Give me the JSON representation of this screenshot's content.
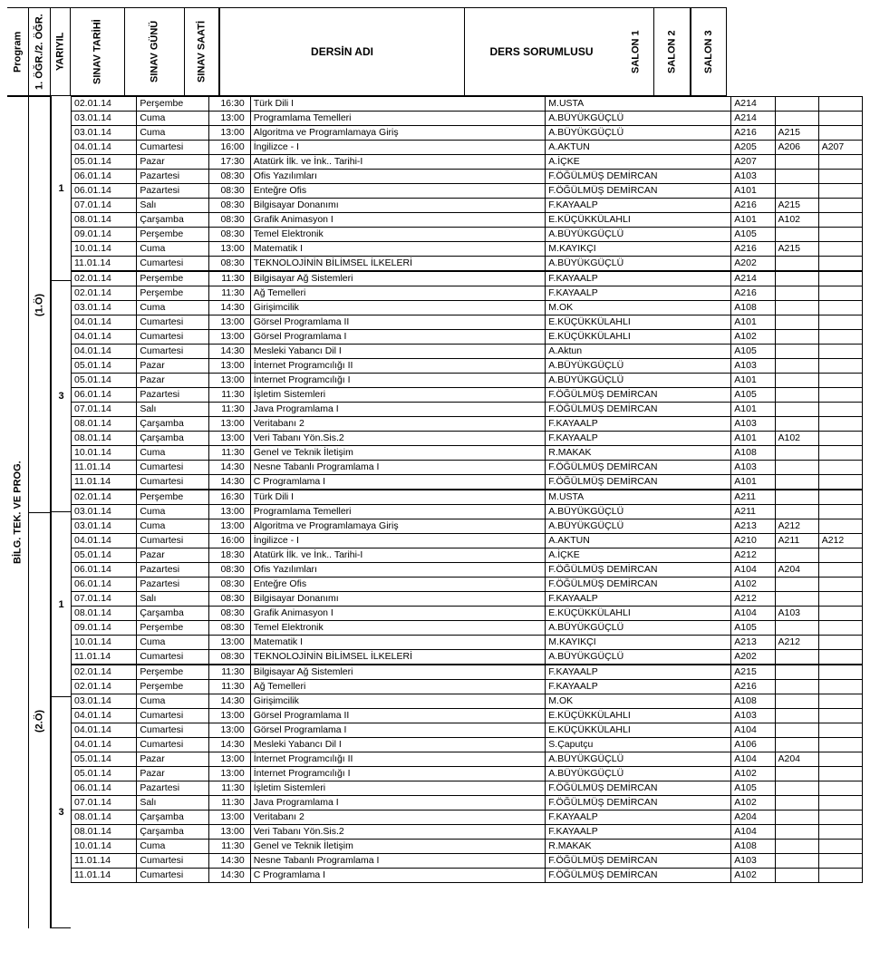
{
  "headers": {
    "program": "Program",
    "ogr": "1. ÖĞR./2. ÖĞR.",
    "yariyil": "YARIYIL",
    "tarih": "SINAV TARİHİ",
    "gunu": "SINAV GÜNÜ",
    "saat": "SINAV SAATİ",
    "ders": "DERSİN ADI",
    "sorumlu": "DERS SORUMLUSU",
    "salon1": "SALON 1",
    "salon2": "SALON 2",
    "salon3": "SALON 3"
  },
  "side_program": "BİLG. TEK. VE PROG.",
  "ogretim_groups": [
    {
      "label": "(1.Ö)",
      "yariyil_groups": [
        {
          "yil": "1",
          "rows": [
            {
              "t": "02.01.14",
              "g": "Perşembe",
              "s": "16:30",
              "d": "Türk Dili I",
              "so": "M.USTA",
              "s1": "A214",
              "s2": "",
              "s3": ""
            },
            {
              "t": "03.01.14",
              "g": "Cuma",
              "s": "13:00",
              "d": "Programlama Temelleri",
              "so": "A.BÜYÜKGÜÇLÜ",
              "s1": "A214",
              "s2": "",
              "s3": ""
            },
            {
              "t": "03.01.14",
              "g": "Cuma",
              "s": "13:00",
              "d": "Algoritma ve Programlamaya Giriş",
              "so": "A.BÜYÜKGÜÇLÜ",
              "s1": "A216",
              "s2": "A215",
              "s3": ""
            },
            {
              "t": "04.01.14",
              "g": "Cumartesi",
              "s": "16:00",
              "d": "İngilizce - I",
              "so": "A.AKTUN",
              "s1": "A205",
              "s2": "A206",
              "s3": "A207"
            },
            {
              "t": "05.01.14",
              "g": "Pazar",
              "s": "17:30",
              "d": "Atatürk İlk. ve İnk.. Tarihi-I",
              "so": "A.İÇKE",
              "s1": "A207",
              "s2": "",
              "s3": ""
            },
            {
              "t": "06.01.14",
              "g": "Pazartesi",
              "s": "08:30",
              "d": "Ofis Yazılımları",
              "so": "F.ÖĞÜLMÜŞ DEMİRCAN",
              "s1": "A103",
              "s2": "",
              "s3": ""
            },
            {
              "t": "06.01.14",
              "g": "Pazartesi",
              "s": "08:30",
              "d": "Enteğre Ofis",
              "so": "F.ÖĞÜLMÜŞ DEMİRCAN",
              "s1": "A101",
              "s2": "",
              "s3": ""
            },
            {
              "t": "07.01.14",
              "g": "Salı",
              "s": "08:30",
              "d": "Bilgisayar Donanımı",
              "so": "F.KAYAALP",
              "s1": "A216",
              "s2": "A215",
              "s3": ""
            },
            {
              "t": "08.01.14",
              "g": "Çarşamba",
              "s": "08:30",
              "d": "Grafik Animasyon I",
              "so": "E.KÜÇÜKKÜLAHLI",
              "s1": "A101",
              "s2": "A102",
              "s3": ""
            },
            {
              "t": "09.01.14",
              "g": "Perşembe",
              "s": "08:30",
              "d": "Temel Elektronik",
              "so": "A.BÜYÜKGÜÇLÜ",
              "s1": "A105",
              "s2": "",
              "s3": ""
            },
            {
              "t": "10.01.14",
              "g": "Cuma",
              "s": "13:00",
              "d": "Matematik I",
              "so": "M.KAYIKÇI",
              "s1": "A216",
              "s2": "A215",
              "s3": ""
            },
            {
              "t": "11.01.14",
              "g": "Cumartesi",
              "s": "08:30",
              "d": "TEKNOLOJİNİN BİLİMSEL İLKELERİ",
              "so": "A.BÜYÜKGÜÇLÜ",
              "s1": "A202",
              "s2": "",
              "s3": ""
            }
          ]
        },
        {
          "yil": "3",
          "rows": [
            {
              "t": "02.01.14",
              "g": "Perşembe",
              "s": "11:30",
              "d": "Bilgisayar Ağ Sistemleri",
              "so": "F.KAYAALP",
              "s1": "A214",
              "s2": "",
              "s3": ""
            },
            {
              "t": "02.01.14",
              "g": "Perşembe",
              "s": "11:30",
              "d": "Ağ Temelleri",
              "so": "F.KAYAALP",
              "s1": "A216",
              "s2": "",
              "s3": ""
            },
            {
              "t": "03.01.14",
              "g": "Cuma",
              "s": "14:30",
              "d": "Girişimcilik",
              "so": "M.OK",
              "s1": "A108",
              "s2": "",
              "s3": ""
            },
            {
              "t": "04.01.14",
              "g": "Cumartesi",
              "s": "13:00",
              "d": "Görsel Programlama II",
              "so": "E.KÜÇÜKKÜLAHLI",
              "s1": "A101",
              "s2": "",
              "s3": ""
            },
            {
              "t": "04.01.14",
              "g": "Cumartesi",
              "s": "13:00",
              "d": "Görsel Programlama I",
              "so": "E.KÜÇÜKKÜLAHLI",
              "s1": "A102",
              "s2": "",
              "s3": ""
            },
            {
              "t": "04.01.14",
              "g": "Cumartesi",
              "s": "14:30",
              "d": "Mesleki Yabancı Dil I",
              "so": "A.Aktun",
              "s1": "A105",
              "s2": "",
              "s3": ""
            },
            {
              "t": "05.01.14",
              "g": "Pazar",
              "s": "13:00",
              "d": "İnternet Programcılığı II",
              "so": "A.BÜYÜKGÜÇLÜ",
              "s1": "A103",
              "s2": "",
              "s3": ""
            },
            {
              "t": "05.01.14",
              "g": "Pazar",
              "s": "13:00",
              "d": "İnternet Programcılığı I",
              "so": "A.BÜYÜKGÜÇLÜ",
              "s1": "A101",
              "s2": "",
              "s3": ""
            },
            {
              "t": "06.01.14",
              "g": "Pazartesi",
              "s": "11:30",
              "d": "İşletim Sistemleri",
              "so": "F.ÖĞÜLMÜŞ DEMİRCAN",
              "s1": "A105",
              "s2": "",
              "s3": ""
            },
            {
              "t": "07.01.14",
              "g": "Salı",
              "s": "11:30",
              "d": "Java Programlama I",
              "so": "F.ÖĞÜLMÜŞ DEMİRCAN",
              "s1": "A101",
              "s2": "",
              "s3": ""
            },
            {
              "t": "08.01.14",
              "g": "Çarşamba",
              "s": "13:00",
              "d": "Veritabanı 2",
              "so": "F.KAYAALP",
              "s1": "A103",
              "s2": "",
              "s3": ""
            },
            {
              "t": "08.01.14",
              "g": "Çarşamba",
              "s": "13:00",
              "d": "Veri Tabanı Yön.Sis.2",
              "so": "F.KAYAALP",
              "s1": "A101",
              "s2": "A102",
              "s3": ""
            },
            {
              "t": "10.01.14",
              "g": "Cuma",
              "s": "11:30",
              "d": "Genel ve Teknik İletişim",
              "so": "R.MAKAK",
              "s1": "A108",
              "s2": "",
              "s3": ""
            },
            {
              "t": "11.01.14",
              "g": "Cumartesi",
              "s": "14:30",
              "d": "Nesne Tabanlı Programlama I",
              "so": "F.ÖĞÜLMÜŞ DEMİRCAN",
              "s1": "A103",
              "s2": "",
              "s3": ""
            },
            {
              "t": "11.01.14",
              "g": "Cumartesi",
              "s": "14:30",
              "d": "C Programlama I",
              "so": "F.ÖĞÜLMÜŞ DEMİRCAN",
              "s1": "A101",
              "s2": "",
              "s3": ""
            }
          ]
        }
      ]
    },
    {
      "label": "(2.Ö)",
      "yariyil_groups": [
        {
          "yil": "1",
          "rows": [
            {
              "t": "02.01.14",
              "g": "Perşembe",
              "s": "16:30",
              "d": "Türk Dili I",
              "so": "M.USTA",
              "s1": "A211",
              "s2": "",
              "s3": ""
            },
            {
              "t": "03.01.14",
              "g": "Cuma",
              "s": "13:00",
              "d": "Programlama Temelleri",
              "so": "A.BÜYÜKGÜÇLÜ",
              "s1": "A211",
              "s2": "",
              "s3": ""
            },
            {
              "t": "03.01.14",
              "g": "Cuma",
              "s": "13:00",
              "d": "Algoritma ve Programlamaya Giriş",
              "so": "A.BÜYÜKGÜÇLÜ",
              "s1": "A213",
              "s2": "A212",
              "s3": ""
            },
            {
              "t": "04.01.14",
              "g": "Cumartesi",
              "s": "16:00",
              "d": "İngilizce - I",
              "so": "A.AKTUN",
              "s1": "A210",
              "s2": "A211",
              "s3": "A212"
            },
            {
              "t": "05.01.14",
              "g": "Pazar",
              "s": "18:30",
              "d": "Atatürk İlk. ve İnk.. Tarihi-I",
              "so": "A.İÇKE",
              "s1": "A212",
              "s2": "",
              "s3": ""
            },
            {
              "t": "06.01.14",
              "g": "Pazartesi",
              "s": "08:30",
              "d": "Ofis Yazılımları",
              "so": "F.ÖĞÜLMÜŞ DEMİRCAN",
              "s1": "A104",
              "s2": "A204",
              "s3": ""
            },
            {
              "t": "06.01.14",
              "g": "Pazartesi",
              "s": "08:30",
              "d": "Enteğre Ofis",
              "so": "F.ÖĞÜLMÜŞ DEMİRCAN",
              "s1": "A102",
              "s2": "",
              "s3": ""
            },
            {
              "t": "07.01.14",
              "g": "Salı",
              "s": "08:30",
              "d": "Bilgisayar Donanımı",
              "so": "F.KAYAALP",
              "s1": "A212",
              "s2": "",
              "s3": ""
            },
            {
              "t": "08.01.14",
              "g": "Çarşamba",
              "s": "08:30",
              "d": "Grafik Animasyon I",
              "so": "E.KÜÇÜKKÜLAHLI",
              "s1": "A104",
              "s2": "A103",
              "s3": ""
            },
            {
              "t": "09.01.14",
              "g": "Perşembe",
              "s": "08:30",
              "d": "Temel Elektronik",
              "so": "A.BÜYÜKGÜÇLÜ",
              "s1": "A105",
              "s2": "",
              "s3": ""
            },
            {
              "t": "10.01.14",
              "g": "Cuma",
              "s": "13:00",
              "d": "Matematik I",
              "so": "M.KAYIKÇI",
              "s1": "A213",
              "s2": "A212",
              "s3": ""
            },
            {
              "t": "11.01.14",
              "g": "Cumartesi",
              "s": "08:30",
              "d": "TEKNOLOJİNİN BİLİMSEL İLKELERİ",
              "so": "A.BÜYÜKGÜÇLÜ",
              "s1": "A202",
              "s2": "",
              "s3": ""
            }
          ]
        },
        {
          "yil": "3",
          "rows": [
            {
              "t": "02.01.14",
              "g": "Perşembe",
              "s": "11:30",
              "d": "Bilgisayar Ağ Sistemleri",
              "so": "F.KAYAALP",
              "s1": "A215",
              "s2": "",
              "s3": ""
            },
            {
              "t": "02.01.14",
              "g": "Perşembe",
              "s": "11:30",
              "d": "Ağ Temelleri",
              "so": "F.KAYAALP",
              "s1": "A216",
              "s2": "",
              "s3": ""
            },
            {
              "t": "03.01.14",
              "g": "Cuma",
              "s": "14:30",
              "d": "Girişimcilik",
              "so": "M.OK",
              "s1": "A108",
              "s2": "",
              "s3": ""
            },
            {
              "t": "04.01.14",
              "g": "Cumartesi",
              "s": "13:00",
              "d": "Görsel Programlama II",
              "so": "E.KÜÇÜKKÜLAHLI",
              "s1": "A103",
              "s2": "",
              "s3": ""
            },
            {
              "t": "04.01.14",
              "g": "Cumartesi",
              "s": "13:00",
              "d": "Görsel Programlama I",
              "so": "E.KÜÇÜKKÜLAHLI",
              "s1": "A104",
              "s2": "",
              "s3": ""
            },
            {
              "t": "04.01.14",
              "g": "Cumartesi",
              "s": "14:30",
              "d": "Mesleki Yabancı Dil I",
              "so": "S.Çaputçu",
              "s1": "A106",
              "s2": "",
              "s3": ""
            },
            {
              "t": "05.01.14",
              "g": "Pazar",
              "s": "13:00",
              "d": "İnternet Programcılığı II",
              "so": "A.BÜYÜKGÜÇLÜ",
              "s1": "A104",
              "s2": "A204",
              "s3": ""
            },
            {
              "t": "05.01.14",
              "g": "Pazar",
              "s": "13:00",
              "d": "İnternet Programcılığı I",
              "so": "A.BÜYÜKGÜÇLÜ",
              "s1": "A102",
              "s2": "",
              "s3": ""
            },
            {
              "t": "06.01.14",
              "g": "Pazartesi",
              "s": "11:30",
              "d": "İşletim Sistemleri",
              "so": "F.ÖĞÜLMÜŞ DEMİRCAN",
              "s1": "A105",
              "s2": "",
              "s3": ""
            },
            {
              "t": "07.01.14",
              "g": "Salı",
              "s": "11:30",
              "d": "Java Programlama I",
              "so": "F.ÖĞÜLMÜŞ DEMİRCAN",
              "s1": "A102",
              "s2": "",
              "s3": ""
            },
            {
              "t": "08.01.14",
              "g": "Çarşamba",
              "s": "13:00",
              "d": "Veritabanı 2",
              "so": "F.KAYAALP",
              "s1": "A204",
              "s2": "",
              "s3": ""
            },
            {
              "t": "08.01.14",
              "g": "Çarşamba",
              "s": "13:00",
              "d": "Veri Tabanı Yön.Sis.2",
              "so": "F.KAYAALP",
              "s1": "A104",
              "s2": "",
              "s3": ""
            },
            {
              "t": "10.01.14",
              "g": "Cuma",
              "s": "11:30",
              "d": "Genel ve Teknik İletişim",
              "so": "R.MAKAK",
              "s1": "A108",
              "s2": "",
              "s3": ""
            },
            {
              "t": "11.01.14",
              "g": "Cumartesi",
              "s": "14:30",
              "d": "Nesne Tabanlı Programlama I",
              "so": "F.ÖĞÜLMÜŞ DEMİRCAN",
              "s1": "A103",
              "s2": "",
              "s3": ""
            },
            {
              "t": "11.01.14",
              "g": "Cumartesi",
              "s": "14:30",
              "d": "C Programlama I",
              "so": "F.ÖĞÜLMÜŞ DEMİRCAN",
              "s1": "A102",
              "s2": "",
              "s3": ""
            }
          ]
        }
      ]
    }
  ]
}
